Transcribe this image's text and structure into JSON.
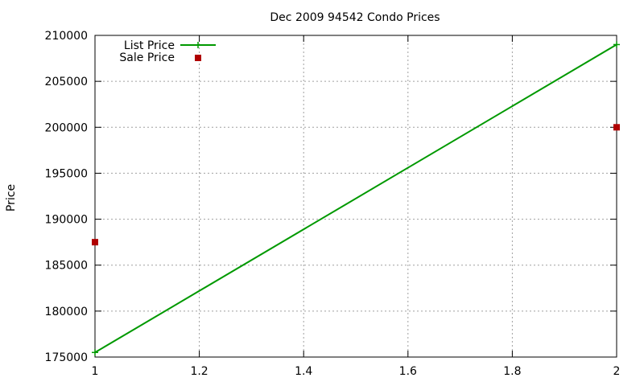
{
  "chart_data": {
    "type": "line",
    "title": "Dec 2009 94542 Condo Prices",
    "xlabel": "",
    "ylabel": "Price",
    "xlim": [
      1,
      2
    ],
    "ylim": [
      175000,
      210000
    ],
    "x_ticks": [
      "1",
      "1.2",
      "1.4",
      "1.6",
      "1.8",
      "2"
    ],
    "y_ticks": [
      "175000",
      "180000",
      "185000",
      "190000",
      "195000",
      "200000",
      "205000",
      "210000"
    ],
    "grid": true,
    "legend_position": "top-left",
    "series": [
      {
        "name": "List Price",
        "style": "linespoints",
        "color": "#009900",
        "points": [
          {
            "x": 1,
            "y": 175500
          },
          {
            "x": 2,
            "y": 209000
          }
        ]
      },
      {
        "name": "Sale Price",
        "style": "points",
        "color": "#b00000",
        "points": [
          {
            "x": 1,
            "y": 187500
          },
          {
            "x": 2,
            "y": 200000
          }
        ]
      }
    ]
  }
}
